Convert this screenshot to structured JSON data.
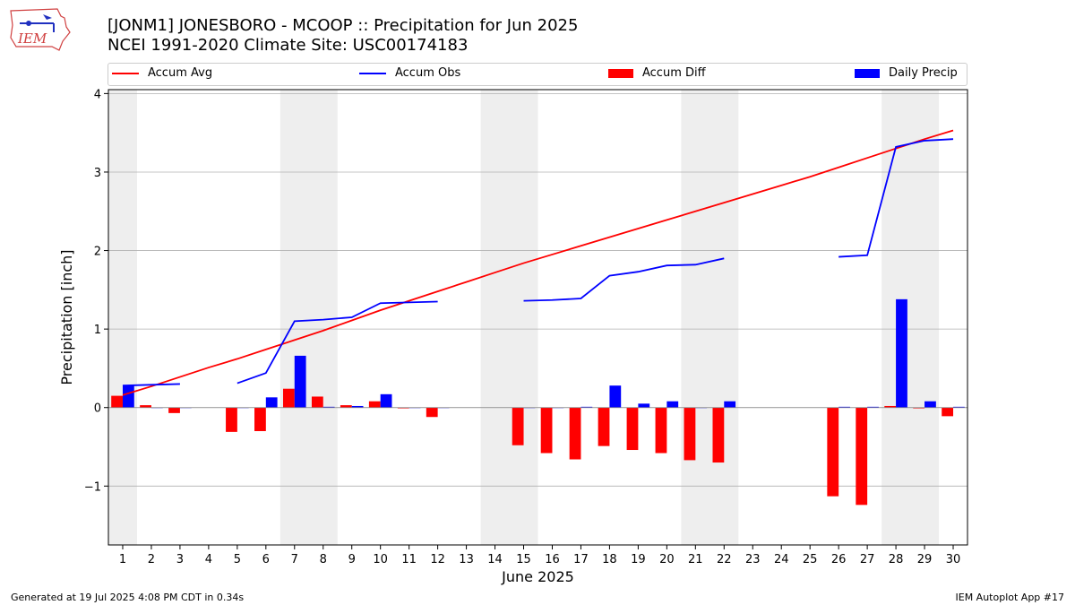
{
  "header": {
    "title_line1": "[JONM1] JONESBORO - MCOOP :: Precipitation for Jun 2025",
    "title_line2": "NCEI 1991-2020 Climate Site: USC00174183",
    "logo_text": "IEM"
  },
  "footer": {
    "generated": "Generated at 19 Jul 2025 4:08 PM CDT in 0.34s",
    "app": "IEM Autoplot App #17"
  },
  "colors": {
    "accum_avg": "#ff0000",
    "accum_obs": "#0000ff",
    "accum_diff": "#ff0000",
    "daily_precip": "#0000ff",
    "weekend_shade": "#eeeeee",
    "grid": "#b0b0b0"
  },
  "chart_data": {
    "type": "bar",
    "xlabel": "June 2025",
    "ylabel": "Precipitation [inch]",
    "xlim": [
      0.5,
      30.5
    ],
    "ylim": [
      -1.75,
      4.05
    ],
    "yticks": [
      -1,
      0,
      1,
      2,
      3,
      4
    ],
    "ytick_labels": [
      "−1",
      "0",
      "1",
      "2",
      "3",
      "4"
    ],
    "grid": "y",
    "legend_position": "top",
    "days": [
      1,
      2,
      3,
      4,
      5,
      6,
      7,
      8,
      9,
      10,
      11,
      12,
      13,
      14,
      15,
      16,
      17,
      18,
      19,
      20,
      21,
      22,
      23,
      24,
      25,
      26,
      27,
      28,
      29,
      30
    ],
    "weekend_spans": [
      [
        0.5,
        1.5
      ],
      [
        6.5,
        8.5
      ],
      [
        13.5,
        15.5
      ],
      [
        20.5,
        22.5
      ],
      [
        27.5,
        29.5
      ]
    ],
    "series": [
      {
        "name": "Accum Avg",
        "kind": "line",
        "values": [
          0.16,
          0.27,
          0.39,
          0.51,
          0.62,
          0.74,
          0.86,
          0.98,
          1.11,
          1.24,
          1.36,
          1.48,
          1.6,
          1.72,
          1.84,
          1.95,
          2.06,
          2.17,
          2.28,
          2.39,
          2.5,
          2.61,
          2.72,
          2.83,
          2.94,
          3.06,
          3.18,
          3.3,
          3.42,
          3.53
        ]
      },
      {
        "name": "Accum Obs",
        "kind": "line",
        "values": [
          0.28,
          0.29,
          0.3,
          null,
          0.31,
          0.44,
          1.1,
          1.12,
          1.15,
          1.33,
          1.34,
          1.35,
          null,
          null,
          1.36,
          1.37,
          1.39,
          1.68,
          1.73,
          1.81,
          1.82,
          1.9,
          null,
          null,
          null,
          1.92,
          1.94,
          3.32,
          3.4,
          3.42
        ]
      },
      {
        "name": "Accum Diff",
        "kind": "bar",
        "values": [
          0.15,
          0.03,
          -0.07,
          null,
          -0.31,
          -0.3,
          0.24,
          0.14,
          0.03,
          0.08,
          -0.01,
          -0.12,
          null,
          null,
          -0.48,
          -0.58,
          -0.66,
          -0.49,
          -0.54,
          -0.58,
          -0.67,
          -0.7,
          null,
          null,
          null,
          -1.13,
          -1.24,
          0.02,
          -0.01,
          -0.11
        ]
      },
      {
        "name": "Daily Precip",
        "kind": "bar",
        "values": [
          0.28,
          0.0,
          0.0,
          null,
          0.0,
          0.13,
          0.66,
          0.01,
          0.02,
          0.17,
          0.0,
          0.0,
          null,
          null,
          0.0,
          0.0,
          0.01,
          0.28,
          0.05,
          0.08,
          0.0,
          0.08,
          null,
          null,
          null,
          0.01,
          0.01,
          1.38,
          0.08,
          0.01
        ]
      }
    ]
  }
}
